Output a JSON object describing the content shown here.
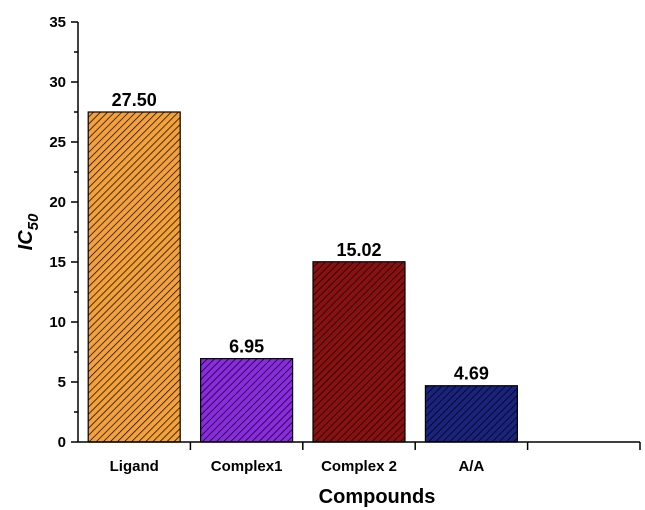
{
  "chart_data": {
    "type": "bar",
    "categories": [
      "Ligand",
      "Complex1",
      "Complex 2",
      "A/A"
    ],
    "values": [
      27.5,
      6.95,
      15.02,
      4.69
    ],
    "data_labels": [
      "27.50",
      "6.95",
      "15.02",
      "4.69"
    ],
    "colors": [
      "#f4a13a",
      "#8a2be2",
      "#8b1111",
      "#1a237e"
    ],
    "pattern": "diagonal-hatch",
    "xlabel": "Compounds",
    "ylabel_main": "IC",
    "ylabel_sub": "50",
    "ylim": [
      0,
      35
    ],
    "yticks": [
      "0",
      "5",
      "10",
      "15",
      "20",
      "25",
      "30",
      "35"
    ],
    "grid": false,
    "legend": "none"
  }
}
